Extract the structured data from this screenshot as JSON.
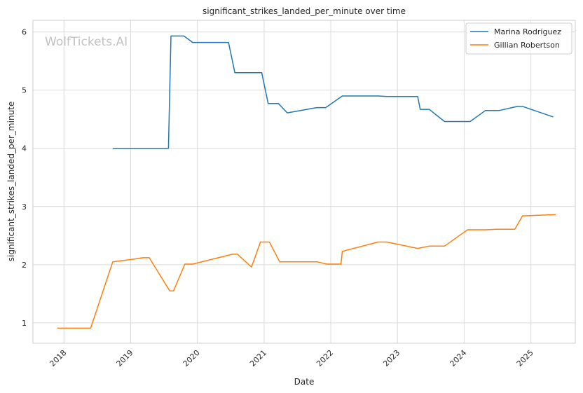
{
  "chart_data": {
    "type": "line",
    "title": "significant_strikes_landed_per_minute over time",
    "xlabel": "Date",
    "ylabel": "significant_strikes_landed_per_minute",
    "watermark": "WolfTickets.AI",
    "xlim": [
      "2017-07-15",
      "2025-09-01"
    ],
    "ylim": [
      0.65,
      6.2
    ],
    "x_ticks": [
      "2018",
      "2019",
      "2020",
      "2021",
      "2022",
      "2023",
      "2024",
      "2025"
    ],
    "y_ticks": [
      "1",
      "2",
      "3",
      "4",
      "5",
      "6"
    ],
    "grid": true,
    "legend_position": "top-right",
    "series": [
      {
        "name": "Marina Rodriguez",
        "color": "#1f77b4",
        "points": [
          [
            "2018-09-25",
            4.0
          ],
          [
            "2019-07-27",
            4.0
          ],
          [
            "2019-08-10",
            5.93
          ],
          [
            "2019-10-20",
            5.93
          ],
          [
            "2019-12-07",
            5.82
          ],
          [
            "2020-06-20",
            5.82
          ],
          [
            "2020-07-25",
            5.3
          ],
          [
            "2020-12-19",
            5.3
          ],
          [
            "2021-01-23",
            4.77
          ],
          [
            "2021-03-20",
            4.77
          ],
          [
            "2021-05-08",
            4.61
          ],
          [
            "2021-10-16",
            4.7
          ],
          [
            "2021-12-04",
            4.7
          ],
          [
            "2022-03-05",
            4.9
          ],
          [
            "2022-09-17",
            4.9
          ],
          [
            "2022-11-05",
            4.89
          ],
          [
            "2023-04-22",
            4.89
          ],
          [
            "2023-05-06",
            4.67
          ],
          [
            "2023-06-24",
            4.67
          ],
          [
            "2023-09-16",
            4.46
          ],
          [
            "2024-02-03",
            4.46
          ],
          [
            "2024-04-27",
            4.65
          ],
          [
            "2024-07-13",
            4.65
          ],
          [
            "2024-10-19",
            4.72
          ],
          [
            "2024-11-16",
            4.72
          ],
          [
            "2025-05-03",
            4.54
          ]
        ]
      },
      {
        "name": "Gillian Robertson",
        "color": "#ff7f0e",
        "points": [
          [
            "2017-11-25",
            0.91
          ],
          [
            "2018-05-27",
            0.91
          ],
          [
            "2018-09-25",
            2.05
          ],
          [
            "2019-01-26",
            2.1
          ],
          [
            "2019-03-09",
            2.12
          ],
          [
            "2019-04-13",
            2.12
          ],
          [
            "2019-08-03",
            1.55
          ],
          [
            "2019-08-24",
            1.55
          ],
          [
            "2019-10-25",
            2.01
          ],
          [
            "2019-12-07",
            2.01
          ],
          [
            "2020-07-11",
            2.18
          ],
          [
            "2020-08-08",
            2.18
          ],
          [
            "2020-10-24",
            1.96
          ],
          [
            "2020-12-12",
            2.39
          ],
          [
            "2021-01-30",
            2.39
          ],
          [
            "2021-03-27",
            2.05
          ],
          [
            "2021-10-16",
            2.05
          ],
          [
            "2021-12-11",
            2.01
          ],
          [
            "2022-02-26",
            2.01
          ],
          [
            "2022-03-05",
            2.23
          ],
          [
            "2022-09-17",
            2.39
          ],
          [
            "2022-11-05",
            2.39
          ],
          [
            "2023-04-22",
            2.28
          ],
          [
            "2023-06-24",
            2.32
          ],
          [
            "2023-09-16",
            2.32
          ],
          [
            "2024-01-20",
            2.6
          ],
          [
            "2024-04-27",
            2.6
          ],
          [
            "2024-06-29",
            2.61
          ],
          [
            "2024-10-05",
            2.61
          ],
          [
            "2024-11-16",
            2.84
          ],
          [
            "2025-05-17",
            2.86
          ]
        ]
      }
    ]
  }
}
